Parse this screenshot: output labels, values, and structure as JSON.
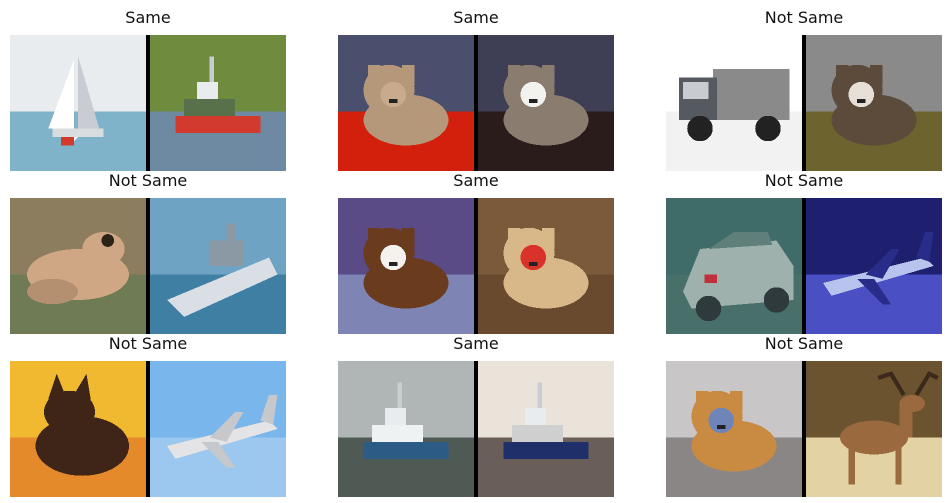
{
  "pairs": [
    {
      "label": "Same",
      "left": {
        "subject": "sailboat",
        "colors": {
          "sky": "#e8ecee",
          "ground": "#7fb3c9",
          "mid": "#7f94a7",
          "accent": "#ffffff"
        }
      },
      "right": {
        "subject": "boat",
        "colors": {
          "sky": "#6f8c3e",
          "ground": "#6e8aa3",
          "mid": "#58714a",
          "accent": "#d23a2e"
        }
      }
    },
    {
      "label": "Same",
      "left": {
        "subject": "dog",
        "colors": {
          "sky": "#4a4f6e",
          "ground": "#d3200d",
          "mid": "#b5977a",
          "accent": "#c8ab8c"
        }
      },
      "right": {
        "subject": "dog",
        "colors": {
          "sky": "#3e3f55",
          "ground": "#2b1c1c",
          "mid": "#8a7d70",
          "accent": "#f2f2ef"
        }
      }
    },
    {
      "label": "Not Same",
      "left": {
        "subject": "truck",
        "colors": {
          "sky": "#ffffff",
          "ground": "#f2f2f2",
          "mid": "#8a8a8a",
          "accent": "#555a60"
        }
      },
      "right": {
        "subject": "dog",
        "colors": {
          "sky": "#8b8a8a",
          "ground": "#6c632e",
          "mid": "#5c4a3a",
          "accent": "#e6e0d8"
        }
      }
    },
    {
      "label": "Not Same",
      "left": {
        "subject": "frog",
        "colors": {
          "sky": "#8c7d5e",
          "ground": "#6f7b55",
          "mid": "#cfa785",
          "accent": "#b59070"
        }
      },
      "right": {
        "subject": "ship",
        "colors": {
          "sky": "#6fa3c4",
          "ground": "#3f7fa3",
          "mid": "#d9dfe4",
          "accent": "#8a99a3"
        }
      }
    },
    {
      "label": "Same",
      "left": {
        "subject": "dog",
        "colors": {
          "sky": "#5a4b86",
          "ground": "#7e84b3",
          "mid": "#6b3b1e",
          "accent": "#f4f1ee"
        }
      },
      "right": {
        "subject": "dog",
        "colors": {
          "sky": "#7a5a3a",
          "ground": "#6a4a2e",
          "mid": "#d8b888",
          "accent": "#d8322a"
        }
      }
    },
    {
      "label": "Not Same",
      "left": {
        "subject": "car",
        "colors": {
          "sky": "#3f6b69",
          "ground": "#496f6a",
          "mid": "#9fb1ad",
          "accent": "#2e3a3c"
        }
      },
      "right": {
        "subject": "airplane",
        "colors": {
          "sky": "#1e1f6e",
          "ground": "#4a4fc4",
          "mid": "#b8c4ee",
          "accent": "#2a2c8a"
        }
      }
    },
    {
      "label": "Not Same",
      "left": {
        "subject": "cat",
        "colors": {
          "sky": "#f0b92f",
          "ground": "#e48a2a",
          "mid": "#3e2517",
          "accent": "#f6d84e"
        }
      },
      "right": {
        "subject": "airplane",
        "colors": {
          "sky": "#79b6ec",
          "ground": "#9cc7ee",
          "mid": "#e4e4e7",
          "accent": "#c7c8cc"
        }
      }
    },
    {
      "label": "Same",
      "left": {
        "subject": "boat",
        "colors": {
          "sky": "#b0b5b5",
          "ground": "#4f5a55",
          "mid": "#eef2f3",
          "accent": "#2c5c86"
        }
      },
      "right": {
        "subject": "boat",
        "colors": {
          "sky": "#eae3d9",
          "ground": "#6a5e59",
          "mid": "#cfcfcf",
          "accent": "#1f2f6a"
        }
      }
    },
    {
      "label": "Not Same",
      "left": {
        "subject": "dog",
        "colors": {
          "sky": "#c8c6c6",
          "ground": "#8a8686",
          "mid": "#c98a42",
          "accent": "#6f85b9"
        }
      },
      "right": {
        "subject": "deer",
        "colors": {
          "sky": "#6b5330",
          "ground": "#e3d2a4",
          "mid": "#9a6a3e",
          "accent": "#3b2a1c"
        }
      }
    }
  ]
}
